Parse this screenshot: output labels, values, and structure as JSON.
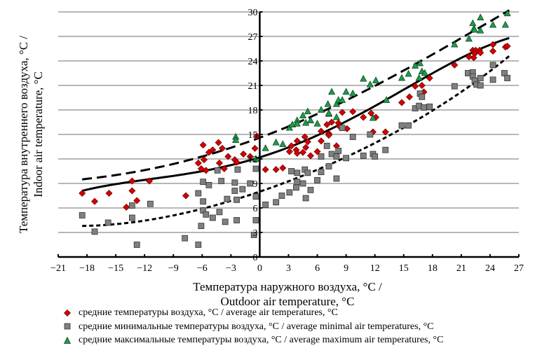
{
  "chart_data": {
    "type": "scatter",
    "title": "",
    "xlabel_lines": [
      "Температура наружного воздуха, °C /",
      "Outdoor air temperature, °C"
    ],
    "ylabel_lines": [
      "Температура внутреннего воздуха, °C /",
      "Indoor air temperature, °C"
    ],
    "xlim": [
      -21,
      27
    ],
    "ylim": [
      0,
      30
    ],
    "x_ticks": [
      -21,
      -18,
      -15,
      -12,
      -9,
      -6,
      -3,
      0,
      3,
      6,
      9,
      12,
      15,
      18,
      21,
      24,
      27
    ],
    "x_tick_labels": [
      "−21",
      "−18",
      "−15",
      "−12",
      "−9",
      "−6",
      "−3",
      "0",
      "3",
      "6",
      "9",
      "12",
      "15",
      "18",
      "21",
      "24",
      "27"
    ],
    "y_ticks": [
      0,
      3,
      6,
      9,
      12,
      15,
      18,
      21,
      24,
      27,
      30
    ],
    "y_tick_labels": [
      "0",
      "3",
      "6",
      "9",
      "12",
      "15",
      "18",
      "21",
      "24",
      "27",
      "30"
    ],
    "grid": "horizontal",
    "legend_position": "bottom",
    "series": [
      {
        "name": "средние температуры воздуха, °C / average air temperatures, °C",
        "marker": "diamond",
        "color": "#d40000",
        "points": [
          [
            -18.5,
            7.8
          ],
          [
            -17.2,
            6.8
          ],
          [
            -15.7,
            7.8
          ],
          [
            -13.3,
            9.3
          ],
          [
            -13.3,
            8.1
          ],
          [
            -12.8,
            6.9
          ],
          [
            -13.9,
            6.1
          ],
          [
            -11.5,
            9.3
          ],
          [
            -7.7,
            7.5
          ],
          [
            -5.9,
            13.7
          ],
          [
            -4.3,
            14.0
          ],
          [
            -4.9,
            13.1
          ],
          [
            -5.3,
            12.8
          ],
          [
            -3.9,
            13.3
          ],
          [
            -5.8,
            11.9
          ],
          [
            -6.4,
            11.5
          ],
          [
            -4.2,
            11.5
          ],
          [
            -3.3,
            12.3
          ],
          [
            -2.6,
            11.9
          ],
          [
            -1.7,
            12.6
          ],
          [
            -1.0,
            12.3
          ],
          [
            -0.5,
            13.3
          ],
          [
            -0.3,
            14.8
          ],
          [
            -6.1,
            10.8
          ],
          [
            -5.6,
            10.6
          ],
          [
            -3.7,
            10.8
          ],
          [
            -2.4,
            11.6
          ],
          [
            0.6,
            10.7
          ],
          [
            1.7,
            10.7
          ],
          [
            2.4,
            10.9
          ],
          [
            3.3,
            13.6
          ],
          [
            3.1,
            12.9
          ],
          [
            3.8,
            13.1
          ],
          [
            3.9,
            12.7
          ],
          [
            3.9,
            14.2
          ],
          [
            4.5,
            12.8
          ],
          [
            4.7,
            14.7
          ],
          [
            4.8,
            13.4
          ],
          [
            5.0,
            14.1
          ],
          [
            5.3,
            12.4
          ],
          [
            6.0,
            12.9
          ],
          [
            6.4,
            14.2
          ],
          [
            6.4,
            15.4
          ],
          [
            7.0,
            16.2
          ],
          [
            7.2,
            15.1
          ],
          [
            7.2,
            14.9
          ],
          [
            7.5,
            16.5
          ],
          [
            8.0,
            13.6
          ],
          [
            8.2,
            16.4
          ],
          [
            8.3,
            16.0
          ],
          [
            8.6,
            17.7
          ],
          [
            9.1,
            15.7
          ],
          [
            9.7,
            17.8
          ],
          [
            10.8,
            17.1
          ],
          [
            11.6,
            17.6
          ],
          [
            12.1,
            17.1
          ],
          [
            11.8,
            15.3
          ],
          [
            13.1,
            15.3
          ],
          [
            14.8,
            18.9
          ],
          [
            15.6,
            19.6
          ],
          [
            16.2,
            20.9
          ],
          [
            16.9,
            21.0
          ],
          [
            17.1,
            20.2
          ],
          [
            17.7,
            21.9
          ],
          [
            20.3,
            23.5
          ],
          [
            21.8,
            24.5
          ],
          [
            22.2,
            25.3
          ],
          [
            22.5,
            25.3
          ],
          [
            22.4,
            24.9
          ],
          [
            22.9,
            25.3
          ],
          [
            23.0,
            25.0
          ],
          [
            24.3,
            26.0
          ],
          [
            24.3,
            25.2
          ],
          [
            25.6,
            25.7
          ],
          [
            25.8,
            25.8
          ],
          [
            22.3,
            24.4
          ]
        ]
      },
      {
        "name": "средние минимальные температуры воздуха, °C / average minimal air temperatures, °C",
        "marker": "square",
        "color": "#808080",
        "points": [
          [
            -18.5,
            5.1
          ],
          [
            -17.2,
            3.1
          ],
          [
            -15.8,
            4.2
          ],
          [
            -13.3,
            6.3
          ],
          [
            -13.3,
            4.8
          ],
          [
            -12.8,
            1.5
          ],
          [
            -11.4,
            6.5
          ],
          [
            -5.9,
            9.2
          ],
          [
            -5.3,
            8.8
          ],
          [
            -4.0,
            9.3
          ],
          [
            -2.6,
            9.1
          ],
          [
            -1.0,
            9.0
          ],
          [
            -6.4,
            7.8
          ],
          [
            -2.6,
            8.1
          ],
          [
            -1.8,
            8.3
          ],
          [
            -5.9,
            6.8
          ],
          [
            -3.4,
            7.1
          ],
          [
            -2.4,
            7.0
          ],
          [
            -0.4,
            7.4
          ],
          [
            -5.9,
            5.7
          ],
          [
            -5.6,
            5.2
          ],
          [
            -4.9,
            4.8
          ],
          [
            -4.2,
            5.5
          ],
          [
            -3.6,
            4.3
          ],
          [
            -2.4,
            4.5
          ],
          [
            -0.4,
            4.5
          ],
          [
            -6.1,
            3.8
          ],
          [
            -0.6,
            2.7
          ],
          [
            -7.8,
            2.3
          ],
          [
            -6.4,
            1.5
          ],
          [
            -4.4,
            10.6
          ],
          [
            -2.3,
            10.7
          ],
          [
            -0.4,
            10.8
          ],
          [
            3.3,
            10.5
          ],
          [
            3.9,
            10.3
          ],
          [
            4.7,
            10.7
          ],
          [
            5.0,
            10.3
          ],
          [
            6.4,
            10.4
          ],
          [
            3.9,
            9.2
          ],
          [
            4.5,
            9.0
          ],
          [
            6.0,
            9.4
          ],
          [
            3.8,
            8.5
          ],
          [
            3.1,
            7.9
          ],
          [
            2.3,
            7.5
          ],
          [
            1.7,
            6.7
          ],
          [
            0.6,
            6.4
          ],
          [
            5.3,
            8.2
          ],
          [
            4.8,
            7.2
          ],
          [
            6.4,
            12.3
          ],
          [
            7.0,
            13.6
          ],
          [
            7.2,
            11.1
          ],
          [
            7.5,
            12.6
          ],
          [
            8.0,
            12.3
          ],
          [
            8.2,
            13.0
          ],
          [
            8.0,
            9.6
          ],
          [
            9.0,
            12.1
          ],
          [
            8.6,
            15.8
          ],
          [
            9.7,
            14.7
          ],
          [
            11.5,
            15.0
          ],
          [
            10.8,
            12.4
          ],
          [
            11.8,
            12.6
          ],
          [
            12.0,
            12.3
          ],
          [
            13.1,
            13.1
          ],
          [
            14.8,
            16.1
          ],
          [
            15.5,
            16.1
          ],
          [
            16.2,
            18.2
          ],
          [
            16.6,
            18.5
          ],
          [
            17.1,
            18.3
          ],
          [
            17.7,
            18.4
          ],
          [
            16.7,
            20.0
          ],
          [
            16.9,
            19.6
          ],
          [
            20.3,
            20.9
          ],
          [
            21.7,
            22.5
          ],
          [
            22.2,
            22.6
          ],
          [
            22.2,
            22.1
          ],
          [
            22.4,
            21.6
          ],
          [
            22.6,
            21.1
          ],
          [
            23.0,
            21.9
          ],
          [
            23.0,
            21.0
          ],
          [
            24.3,
            23.5
          ],
          [
            24.3,
            21.7
          ],
          [
            25.5,
            22.5
          ],
          [
            25.8,
            21.9
          ]
        ]
      },
      {
        "name": "средние максимальные температуры воздуха, °C / average maximum  air temperatures, °C",
        "marker": "triangle",
        "color": "#1e9a4a",
        "points": [
          [
            -2.5,
            14.7
          ],
          [
            -2.5,
            14.3
          ],
          [
            -0.4,
            12.0
          ],
          [
            0.6,
            13.3
          ],
          [
            1.7,
            14.0
          ],
          [
            2.4,
            13.8
          ],
          [
            3.1,
            15.8
          ],
          [
            3.4,
            16.2
          ],
          [
            3.9,
            16.7
          ],
          [
            3.9,
            16.3
          ],
          [
            4.5,
            17.3
          ],
          [
            4.8,
            16.4
          ],
          [
            5.0,
            17.8
          ],
          [
            5.3,
            16.7
          ],
          [
            6.0,
            16.3
          ],
          [
            6.4,
            18.0
          ],
          [
            7.1,
            18.7
          ],
          [
            7.2,
            17.5
          ],
          [
            7.2,
            17.6
          ],
          [
            8.0,
            17.1
          ],
          [
            8.0,
            18.7
          ],
          [
            8.2,
            19.2
          ],
          [
            8.6,
            19.2
          ],
          [
            7.5,
            20.2
          ],
          [
            9.0,
            20.2
          ],
          [
            9.7,
            20.0
          ],
          [
            10.8,
            21.8
          ],
          [
            11.5,
            21.1
          ],
          [
            12.1,
            21.6
          ],
          [
            13.2,
            19.2
          ],
          [
            11.8,
            17.0
          ],
          [
            14.8,
            21.9
          ],
          [
            15.5,
            22.4
          ],
          [
            16.2,
            23.4
          ],
          [
            16.7,
            23.7
          ],
          [
            16.6,
            21.9
          ],
          [
            16.9,
            22.7
          ],
          [
            17.2,
            22.5
          ],
          [
            20.3,
            26.0
          ],
          [
            21.8,
            26.7
          ],
          [
            22.2,
            28.6
          ],
          [
            22.3,
            27.9
          ],
          [
            22.4,
            27.8
          ],
          [
            23.0,
            29.3
          ],
          [
            23.0,
            27.7
          ],
          [
            24.3,
            28.4
          ],
          [
            25.6,
            28.4
          ],
          [
            25.8,
            29.8
          ]
        ]
      }
    ],
    "trendlines": [
      {
        "series": "average",
        "style": "solid",
        "samples": [
          [
            -18.5,
            8.1
          ],
          [
            -6,
            10.5
          ],
          [
            0,
            12.2
          ],
          [
            8,
            16.0
          ],
          [
            26,
            26.8
          ]
        ]
      },
      {
        "series": "maximum",
        "style": "long-dash",
        "samples": [
          [
            -18.5,
            9.5
          ],
          [
            -6,
            12.3
          ],
          [
            0,
            14.6
          ],
          [
            8,
            18.6
          ],
          [
            26,
            30.2
          ]
        ]
      },
      {
        "series": "minimal",
        "style": "short-dash",
        "samples": [
          [
            -18.5,
            3.8
          ],
          [
            -6,
            5.9
          ],
          [
            0,
            8.0
          ],
          [
            8,
            11.7
          ],
          [
            26,
            24.6
          ]
        ]
      }
    ]
  },
  "legend": {
    "items": [
      {
        "label": "средние температуры воздуха, °C / average air temperatures, °C",
        "marker": "diamond",
        "color": "#d40000"
      },
      {
        "label": "средние минимальные температуры воздуха, °C / average minimal air temperatures, °C",
        "marker": "square",
        "color": "#808080"
      },
      {
        "label": "средние максимальные температуры воздуха, °C / average maximum  air temperatures, °C",
        "marker": "triangle",
        "color": "#1e9a4a"
      }
    ]
  }
}
